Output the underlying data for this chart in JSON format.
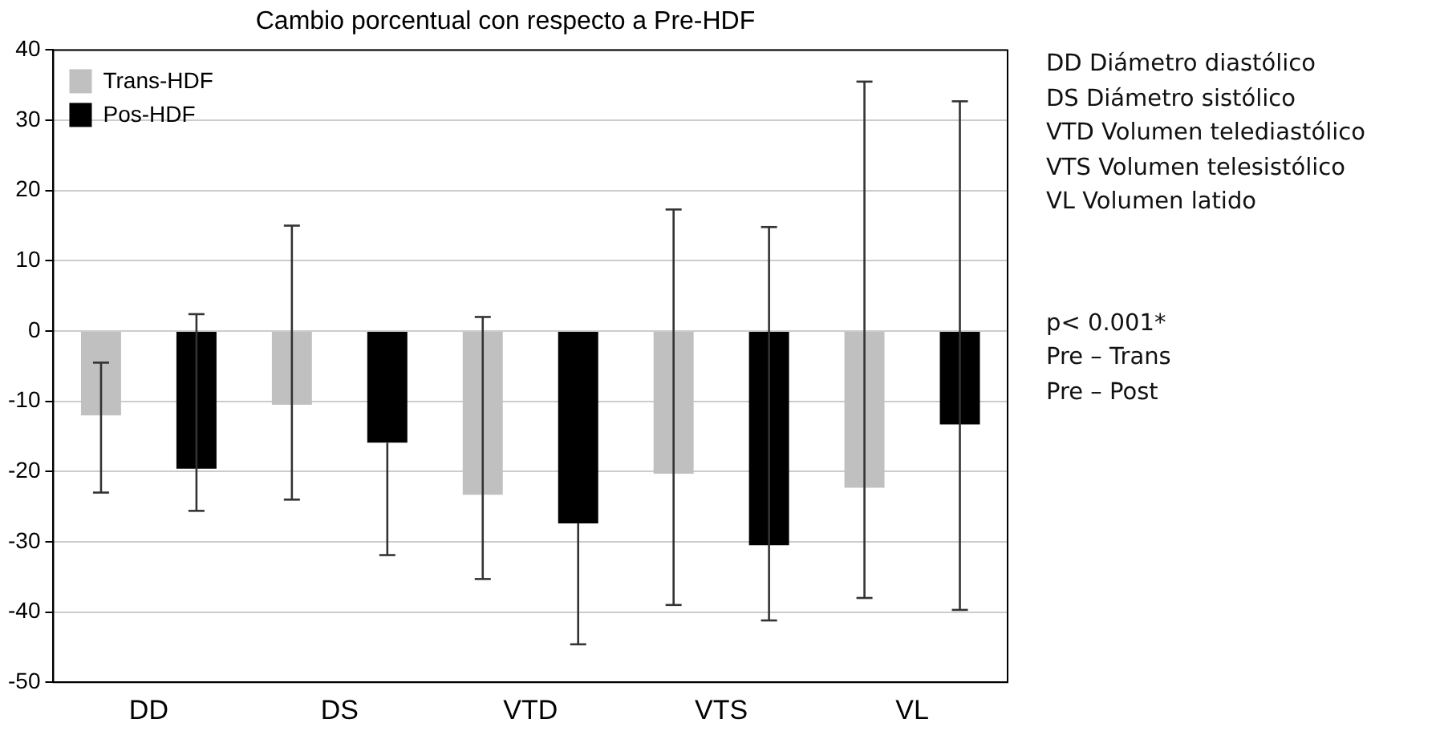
{
  "chart_data": {
    "type": "bar",
    "title": "Cambio porcentual con respecto a Pre-HDF",
    "categories": [
      "DD",
      "DS",
      "VTD",
      "VTS",
      "VL"
    ],
    "series": [
      {
        "name": "Trans-HDF",
        "color": "#c0c0c0",
        "values": [
          -12,
          -10.5,
          -23.3,
          -20.3,
          -22.3
        ],
        "errors": [
          [
            -23,
            -4.5
          ],
          [
            -24,
            15
          ],
          [
            -35.3,
            2
          ],
          [
            -39,
            17.3
          ],
          [
            -38,
            35.5
          ]
        ]
      },
      {
        "name": "Pos-HDF",
        "color": "#000000",
        "values": [
          -19.6,
          -15.9,
          -27.4,
          -30.5,
          -13.3
        ],
        "errors": [
          [
            -25.6,
            2.4
          ],
          [
            -31.9,
            -15.9
          ],
          [
            -44.6,
            -27.4
          ],
          [
            -41.2,
            14.8
          ],
          [
            -39.7,
            32.7
          ]
        ]
      }
    ],
    "ylim": [
      -50,
      40
    ],
    "yticks": [
      -50,
      -40,
      -30,
      -20,
      -10,
      0,
      10,
      20,
      30,
      40
    ],
    "grid": "y",
    "legend": "top left",
    "annotations": [
      "DD Diámetro diastólico",
      "DS Diámetro sistólico",
      "VTD Volumen telediastólico",
      "VTS Volumen telesistólico",
      "VL Volumen latido",
      "p< 0.001*",
      "Pre – Trans",
      "Pre – Post"
    ]
  }
}
